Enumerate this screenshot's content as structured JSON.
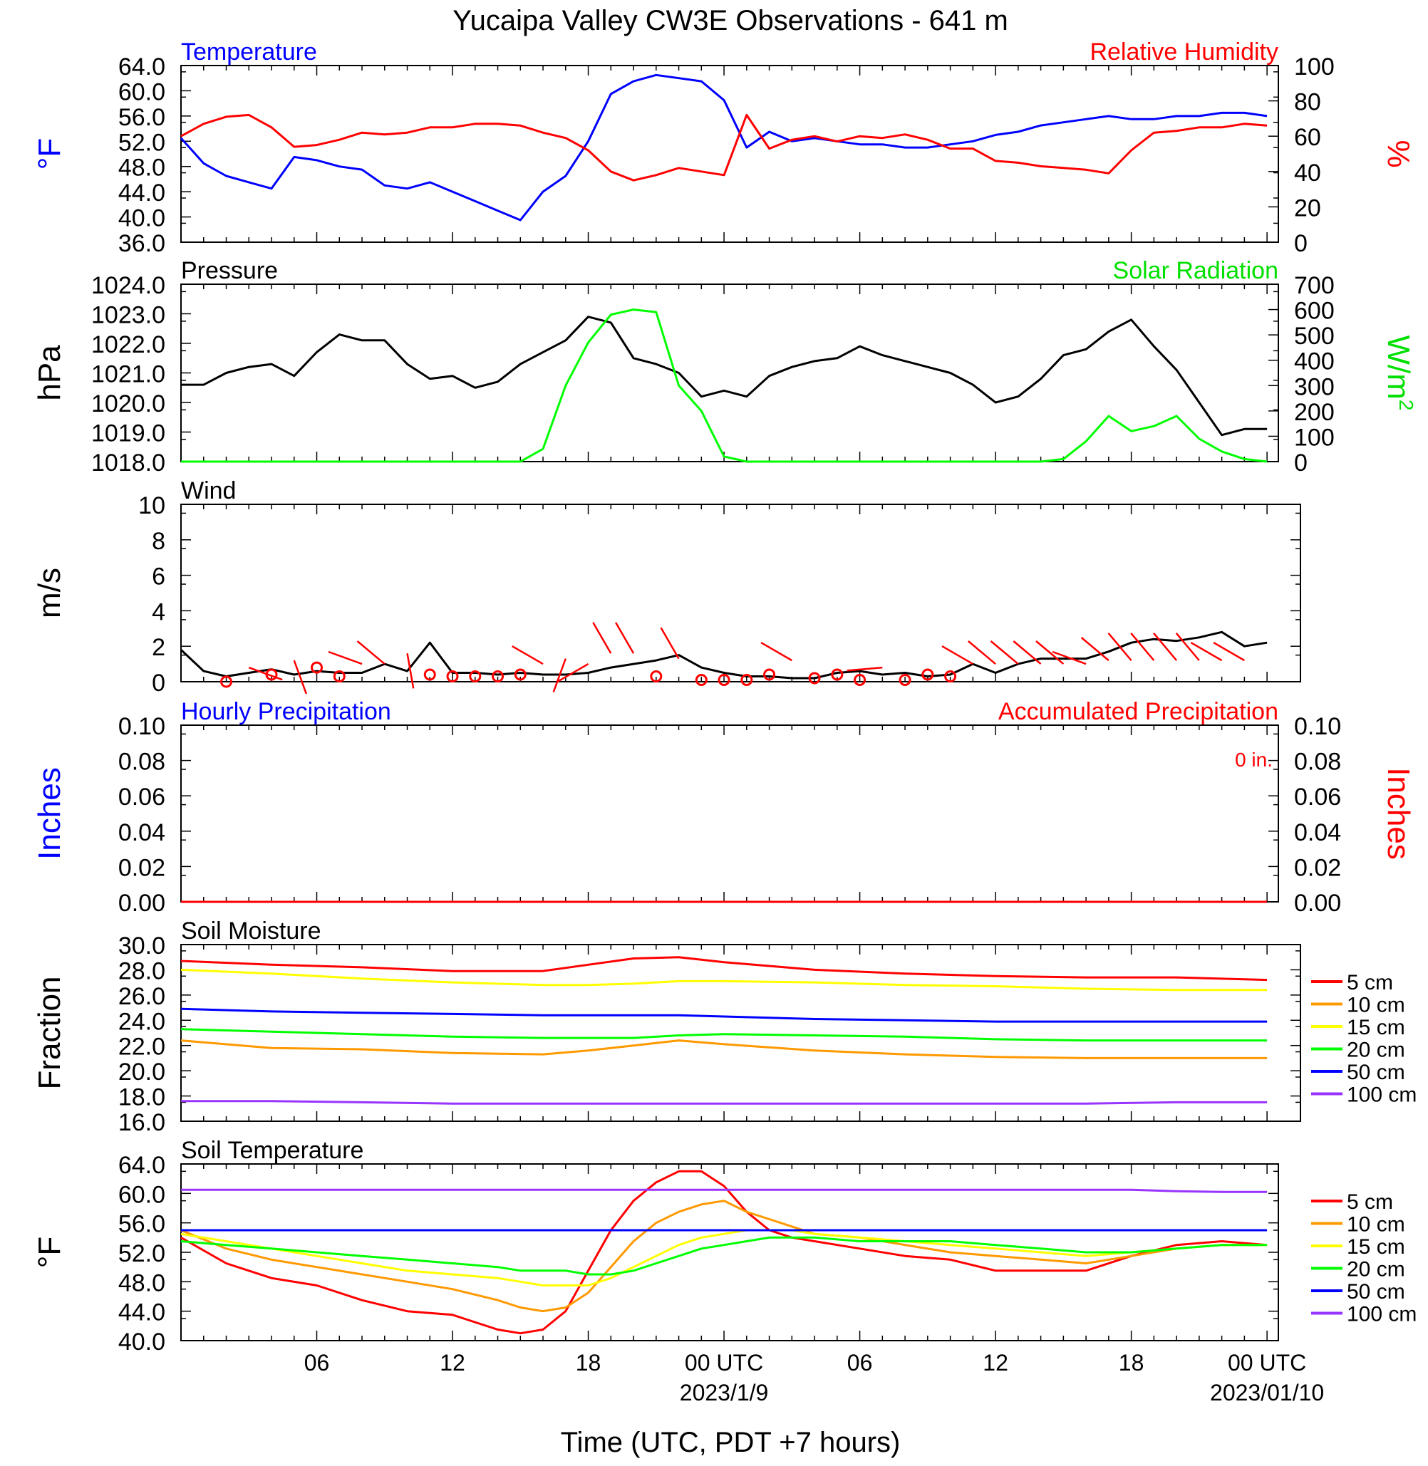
{
  "figure": {
    "title": "Yucaipa Valley CW3E Observations - 641 m",
    "xlabel": "Time (UTC, PDT +7 hours)",
    "x_ticks": [
      "06",
      "12",
      "18",
      "00 UTC",
      "06",
      "12",
      "18",
      "00 UTC"
    ],
    "date_labels": [
      "2023/1/9",
      "2023/01/10"
    ]
  },
  "chart_data": [
    {
      "type": "line",
      "title_left": "Temperature",
      "title_right": "Relative Humidity",
      "ylabel_left": "°F",
      "ylabel_right": "%",
      "ylim_left": [
        36,
        64
      ],
      "ylim_right": [
        0,
        100
      ],
      "yticks_left": [
        "64.0",
        "60.0",
        "56.0",
        "52.0",
        "48.0",
        "44.0",
        "40.0",
        "36.0"
      ],
      "yticks_right": [
        "100",
        "80",
        "60",
        "40",
        "20",
        "0"
      ],
      "x_hours": [
        0,
        1,
        2,
        3,
        4,
        5,
        6,
        7,
        8,
        9,
        10,
        11,
        12,
        13,
        14,
        15,
        16,
        17,
        18,
        19,
        20,
        21,
        22,
        23,
        24,
        25,
        26,
        27,
        28,
        29,
        30,
        31,
        32,
        33,
        34,
        35,
        36,
        37,
        38,
        39,
        40,
        41,
        42,
        43,
        44,
        45,
        46,
        47,
        48
      ],
      "series": [
        {
          "name": "Temperature",
          "axis": "left",
          "color": "#0000ff",
          "values": [
            52.5,
            48.5,
            46.5,
            45.5,
            44.5,
            49.5,
            49,
            48,
            47.5,
            45,
            44.5,
            45.5,
            44,
            42.5,
            41,
            39.5,
            44,
            46.5,
            52,
            59.5,
            61.5,
            62.5,
            62,
            61.5,
            58.5,
            51,
            53.5,
            52,
            52.5,
            52,
            51.5,
            51.5,
            51,
            51,
            51.5,
            52,
            53,
            53.5,
            54.5,
            55,
            55.5,
            56,
            55.5,
            55.5,
            56,
            56,
            56.5,
            56.5,
            56
          ]
        },
        {
          "name": "Relative Humidity",
          "axis": "right",
          "color": "#ff0000",
          "values": [
            60,
            67,
            71,
            72,
            65,
            54,
            55,
            58,
            62,
            61,
            62,
            65,
            65,
            67,
            67,
            66,
            62,
            59,
            52,
            40,
            35,
            38,
            42,
            40,
            38,
            72,
            53,
            58,
            60,
            57,
            60,
            59,
            61,
            58,
            53,
            53,
            46,
            45,
            43,
            42,
            41,
            39,
            52,
            62,
            63,
            65,
            65,
            67,
            66
          ]
        }
      ]
    },
    {
      "type": "line",
      "title_left": "Pressure",
      "title_right": "Solar Radiation",
      "ylabel_left": "hPa",
      "ylabel_right": "W/m",
      "ylabel_right_sup": "2",
      "ylim_left": [
        1018,
        1024
      ],
      "ylim_right": [
        0,
        700
      ],
      "yticks_left": [
        "1024.0",
        "1023.0",
        "1022.0",
        "1021.0",
        "1020.0",
        "1019.0",
        "1018.0"
      ],
      "yticks_right": [
        "700",
        "600",
        "500",
        "400",
        "300",
        "200",
        "100",
        "0"
      ],
      "x_hours": [
        0,
        1,
        2,
        3,
        4,
        5,
        6,
        7,
        8,
        9,
        10,
        11,
        12,
        13,
        14,
        15,
        16,
        17,
        18,
        19,
        20,
        21,
        22,
        23,
        24,
        25,
        26,
        27,
        28,
        29,
        30,
        31,
        32,
        33,
        34,
        35,
        36,
        37,
        38,
        39,
        40,
        41,
        42,
        43,
        44,
        45,
        46,
        47,
        48
      ],
      "series": [
        {
          "name": "Pressure",
          "axis": "left",
          "color": "#000000",
          "values": [
            1020.6,
            1020.6,
            1021.0,
            1021.2,
            1021.3,
            1020.9,
            1021.7,
            1022.3,
            1022.1,
            1022.1,
            1021.3,
            1020.8,
            1020.9,
            1020.5,
            1020.7,
            1021.3,
            1021.7,
            1022.1,
            1022.9,
            1022.7,
            1021.5,
            1021.3,
            1021.0,
            1020.2,
            1020.4,
            1020.2,
            1020.9,
            1021.2,
            1021.4,
            1021.5,
            1021.9,
            1021.6,
            1021.4,
            1021.2,
            1021.0,
            1020.6,
            1020.0,
            1020.2,
            1020.8,
            1021.6,
            1021.8,
            1022.4,
            1022.8,
            1021.9,
            1021.1,
            1020.0,
            1018.9,
            1019.1,
            1019.1
          ]
        },
        {
          "name": "Solar Radiation",
          "axis": "right",
          "color": "#00ff00",
          "values": [
            0,
            0,
            0,
            0,
            0,
            0,
            0,
            0,
            0,
            0,
            0,
            0,
            0,
            0,
            0,
            0,
            50,
            300,
            470,
            580,
            600,
            590,
            300,
            200,
            20,
            0,
            0,
            0,
            0,
            0,
            0,
            0,
            0,
            0,
            0,
            0,
            0,
            0,
            0,
            10,
            80,
            180,
            120,
            140,
            180,
            90,
            40,
            10,
            0
          ]
        }
      ]
    },
    {
      "type": "line",
      "title_left": "Wind",
      "ylabel_left": "m/s",
      "ylim_left": [
        0,
        10
      ],
      "yticks_left": [
        "10",
        "8",
        "6",
        "4",
        "2",
        "0"
      ],
      "x_hours": [
        0,
        1,
        2,
        3,
        4,
        5,
        6,
        7,
        8,
        9,
        10,
        11,
        12,
        13,
        14,
        15,
        16,
        17,
        18,
        19,
        20,
        21,
        22,
        23,
        24,
        25,
        26,
        27,
        28,
        29,
        30,
        31,
        32,
        33,
        34,
        35,
        36,
        37,
        38,
        39,
        40,
        41,
        42,
        43,
        44,
        45,
        46,
        47,
        48
      ],
      "series": [
        {
          "name": "Wind Speed",
          "axis": "left",
          "color": "#000000",
          "values": [
            1.8,
            0.6,
            0.3,
            0.5,
            0.7,
            0.4,
            0.6,
            0.5,
            0.5,
            1.0,
            0.6,
            2.2,
            0.5,
            0.5,
            0.4,
            0.5,
            0.4,
            0.4,
            0.5,
            0.8,
            1.0,
            1.2,
            1.5,
            0.8,
            0.5,
            0.3,
            0.3,
            0.2,
            0.2,
            0.5,
            0.6,
            0.4,
            0.5,
            0.3,
            0.4,
            1.0,
            0.5,
            1.0,
            1.3,
            1.3,
            1.3,
            1.7,
            2.2,
            2.4,
            2.3,
            2.5,
            2.8,
            2.0,
            2.2
          ]
        }
      ],
      "barbs": {
        "color": "#ff0000",
        "hours": [
          2,
          3,
          4,
          5,
          6,
          7,
          8,
          9,
          10,
          11,
          12,
          13,
          14,
          15,
          16,
          17,
          18,
          19,
          20,
          21,
          22,
          23,
          24,
          25,
          26,
          27,
          28,
          29,
          30,
          31,
          32,
          33,
          34,
          35,
          36,
          37,
          38,
          39,
          40,
          41,
          42,
          43,
          44,
          45,
          46,
          47
        ],
        "speed": [
          0,
          0.8,
          0.4,
          1.2,
          0.8,
          0.3,
          1.0,
          1.0,
          1.6,
          0.4,
          0.3,
          0.3,
          0.3,
          0.4,
          1.0,
          1.3,
          1.0,
          1.6,
          1.6,
          0.3,
          1.3,
          0.1,
          0.1,
          0.1,
          0.4,
          1.2,
          0.2,
          0.4,
          0.1,
          0.8,
          0.1,
          0.4,
          0.3,
          1.0,
          1.0,
          1.0,
          1.0,
          1.0,
          1.0,
          1.2,
          1.2,
          1.2,
          1.2,
          1.2,
          1.2,
          1.2
        ],
        "direction_deg": [
          0,
          110,
          0,
          160,
          0,
          0,
          290,
          310,
          170,
          0,
          0,
          0,
          0,
          0,
          300,
          200,
          240,
          330,
          330,
          0,
          330,
          0,
          0,
          0,
          0,
          300,
          0,
          0,
          0,
          265,
          0,
          0,
          0,
          300,
          310,
          310,
          310,
          310,
          290,
          310,
          320,
          320,
          320,
          320,
          300,
          300
        ]
      }
    },
    {
      "type": "line",
      "title_left": "Hourly Precipitation",
      "title_right": "Accumulated Precipitation",
      "annotation": "0 in.",
      "ylabel_left": "Inches",
      "ylabel_right": "Inches",
      "ylim_left": [
        0,
        0.1
      ],
      "ylim_right": [
        0,
        0.1
      ],
      "yticks_left": [
        "0.10",
        "0.08",
        "0.06",
        "0.04",
        "0.02",
        "0.00"
      ],
      "yticks_right": [
        "0.10",
        "0.08",
        "0.06",
        "0.04",
        "0.02",
        "0.00"
      ],
      "x_hours": [
        0,
        48
      ],
      "series": [
        {
          "name": "Accumulated Precipitation",
          "axis": "left",
          "color": "#ff0000",
          "values": [
            0,
            0
          ]
        }
      ]
    },
    {
      "type": "line",
      "title_left": "Soil Moisture",
      "ylabel_left": "Fraction",
      "ylim_left": [
        16,
        30
      ],
      "yticks_left": [
        "30.0",
        "28.0",
        "26.0",
        "24.0",
        "22.0",
        "20.0",
        "18.0",
        "16.0"
      ],
      "legend": [
        "5 cm",
        "10 cm",
        "15 cm",
        "20 cm",
        "50 cm",
        "100 cm"
      ],
      "x_hours": [
        0,
        4,
        8,
        12,
        16,
        18,
        20,
        22,
        24,
        28,
        32,
        36,
        40,
        44,
        48
      ],
      "series": [
        {
          "name": "5 cm",
          "color": "#ff0000",
          "values": [
            28.7,
            28.4,
            28.2,
            27.9,
            27.9,
            28.4,
            28.9,
            29.0,
            28.6,
            28.0,
            27.7,
            27.5,
            27.4,
            27.4,
            27.2
          ]
        },
        {
          "name": "10 cm",
          "color": "#ff9900",
          "values": [
            22.4,
            21.8,
            21.7,
            21.4,
            21.3,
            21.6,
            22.0,
            22.4,
            22.1,
            21.6,
            21.3,
            21.1,
            21.0,
            21.0,
            21.0
          ]
        },
        {
          "name": "15 cm",
          "color": "#ffff00",
          "values": [
            28.0,
            27.7,
            27.3,
            27.0,
            26.8,
            26.8,
            26.9,
            27.1,
            27.1,
            27.0,
            26.8,
            26.7,
            26.5,
            26.4,
            26.4
          ]
        },
        {
          "name": "20 cm",
          "color": "#00ff00",
          "values": [
            23.3,
            23.1,
            22.9,
            22.7,
            22.6,
            22.6,
            22.6,
            22.8,
            22.9,
            22.8,
            22.7,
            22.5,
            22.4,
            22.4,
            22.4
          ]
        },
        {
          "name": "50 cm",
          "color": "#0000ff",
          "values": [
            24.9,
            24.7,
            24.6,
            24.5,
            24.4,
            24.4,
            24.4,
            24.4,
            24.3,
            24.1,
            24.0,
            23.9,
            23.9,
            23.9,
            23.9
          ]
        },
        {
          "name": "100 cm",
          "color": "#9933ff",
          "values": [
            17.6,
            17.6,
            17.5,
            17.4,
            17.4,
            17.4,
            17.4,
            17.4,
            17.4,
            17.4,
            17.4,
            17.4,
            17.4,
            17.5,
            17.5
          ]
        }
      ]
    },
    {
      "type": "line",
      "title_left": "Soil Temperature",
      "ylabel_left": "°F",
      "ylim_left": [
        40,
        64
      ],
      "yticks_left": [
        "64.0",
        "60.0",
        "56.0",
        "52.0",
        "48.0",
        "44.0",
        "40.0"
      ],
      "legend": [
        "5 cm",
        "10 cm",
        "15 cm",
        "20 cm",
        "50 cm",
        "100 cm"
      ],
      "x_hours": [
        0,
        2,
        4,
        6,
        8,
        10,
        12,
        14,
        15,
        16,
        17,
        18,
        19,
        20,
        21,
        22,
        23,
        24,
        25,
        26,
        27,
        28,
        30,
        32,
        34,
        36,
        38,
        40,
        42,
        44,
        46,
        48
      ],
      "series": [
        {
          "name": "5 cm",
          "color": "#ff0000",
          "values": [
            54,
            50.5,
            48.5,
            47.5,
            45.5,
            44,
            43.5,
            41.5,
            41,
            41.5,
            44,
            49.5,
            55,
            59,
            61.5,
            63,
            63,
            61,
            57.5,
            55,
            54,
            53.5,
            52.5,
            51.5,
            51,
            49.5,
            49.5,
            49.5,
            51.5,
            53,
            53.5,
            53
          ]
        },
        {
          "name": "10 cm",
          "color": "#ff9900",
          "values": [
            55,
            52.5,
            51,
            50,
            49,
            48,
            47,
            45.5,
            44.5,
            44,
            44.5,
            46.5,
            50,
            53.5,
            56,
            57.5,
            58.5,
            59,
            57.5,
            56.5,
            55.5,
            54.5,
            54,
            53,
            52,
            51.5,
            51,
            50.5,
            51.5,
            52.5,
            53,
            53
          ]
        },
        {
          "name": "15 cm",
          "color": "#ffff00",
          "values": [
            54.5,
            53.5,
            52.5,
            51.5,
            50.5,
            49.5,
            49,
            48.5,
            48,
            47.5,
            47.5,
            47.5,
            48.5,
            50,
            51.5,
            53,
            54,
            54.5,
            55,
            55,
            55,
            54.5,
            54,
            53.5,
            53,
            52.5,
            52,
            51.5,
            52,
            52.5,
            53,
            53
          ]
        },
        {
          "name": "20 cm",
          "color": "#00ff00",
          "values": [
            53.5,
            53,
            52.5,
            52,
            51.5,
            51,
            50.5,
            50,
            49.5,
            49.5,
            49.5,
            49,
            49,
            49.5,
            50.5,
            51.5,
            52.5,
            53,
            53.5,
            54,
            54,
            54,
            53.5,
            53.5,
            53.5,
            53,
            52.5,
            52,
            52,
            52.5,
            53,
            53
          ]
        },
        {
          "name": "50 cm",
          "color": "#0000ff",
          "values": [
            55,
            55,
            55,
            55,
            55,
            55,
            55,
            55,
            55,
            55,
            55,
            55,
            55,
            55,
            55,
            55,
            55,
            55,
            55,
            55,
            55,
            55,
            55,
            55,
            55,
            55,
            55,
            55,
            55,
            55,
            55,
            55
          ]
        },
        {
          "name": "100 cm",
          "color": "#9933ff",
          "values": [
            60.5,
            60.5,
            60.5,
            60.5,
            60.5,
            60.5,
            60.5,
            60.5,
            60.5,
            60.5,
            60.5,
            60.5,
            60.5,
            60.5,
            60.5,
            60.5,
            60.5,
            60.5,
            60.5,
            60.5,
            60.5,
            60.5,
            60.5,
            60.5,
            60.5,
            60.5,
            60.5,
            60.5,
            60.5,
            60.3,
            60.2,
            60.2
          ]
        }
      ]
    }
  ]
}
